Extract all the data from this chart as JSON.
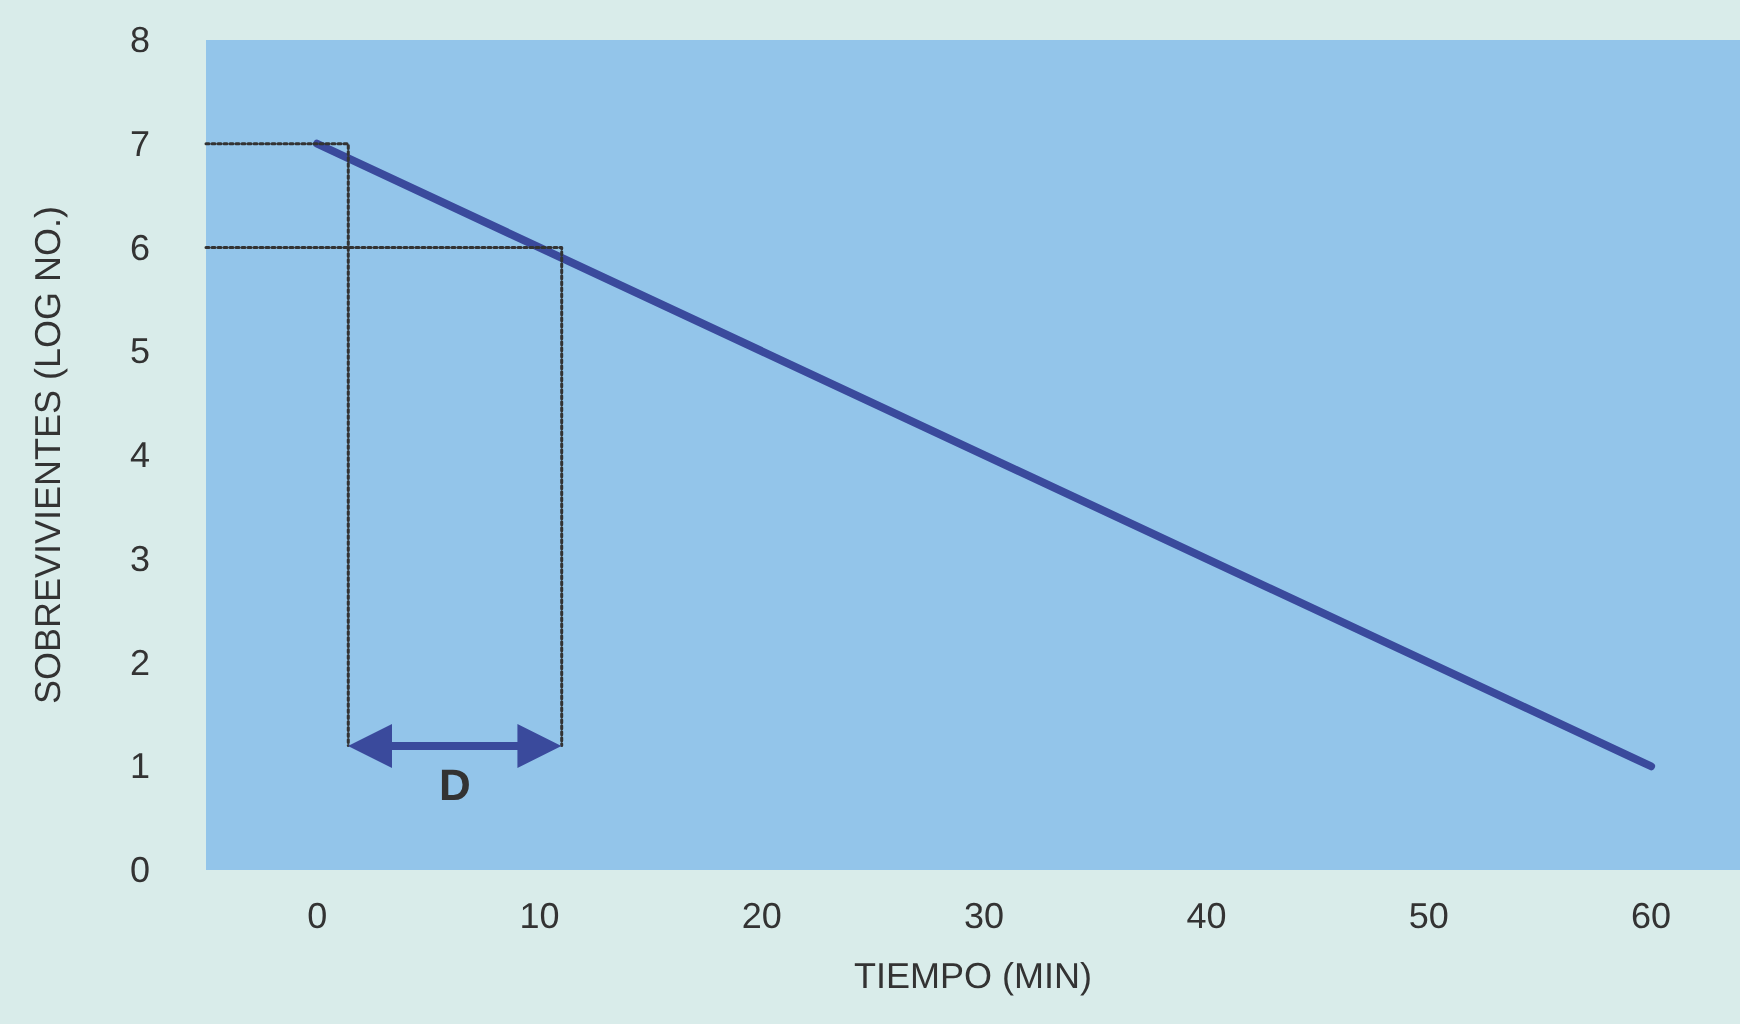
{
  "chart_data": {
    "type": "line",
    "xlabel": "TIEMPO (MIN)",
    "ylabel": "SOBREVIVIENTES (LOG NO.)",
    "xlim": [
      -5,
      64
    ],
    "xticks": [
      0,
      10,
      20,
      30,
      40,
      50,
      60
    ],
    "ylim": [
      0,
      8
    ],
    "yticks": [
      0,
      1,
      2,
      3,
      4,
      5,
      6,
      7,
      8
    ],
    "grid": false,
    "marker": "none",
    "series": [
      {
        "color": "#3a4a9c",
        "x": [
          0,
          60
        ],
        "values": [
          7,
          1
        ],
        "line_style": "solid"
      },
      {
        "color": "#333333",
        "x": [
          -5,
          1.4,
          1.4
        ],
        "values": [
          7,
          7,
          1.2
        ],
        "line_style": "dotted"
      },
      {
        "color": "#333333",
        "x": [
          -5,
          11,
          11
        ],
        "values": [
          6,
          6,
          1.2
        ],
        "line_style": "dotted"
      }
    ],
    "annotations": [
      "D"
    ]
  }
}
